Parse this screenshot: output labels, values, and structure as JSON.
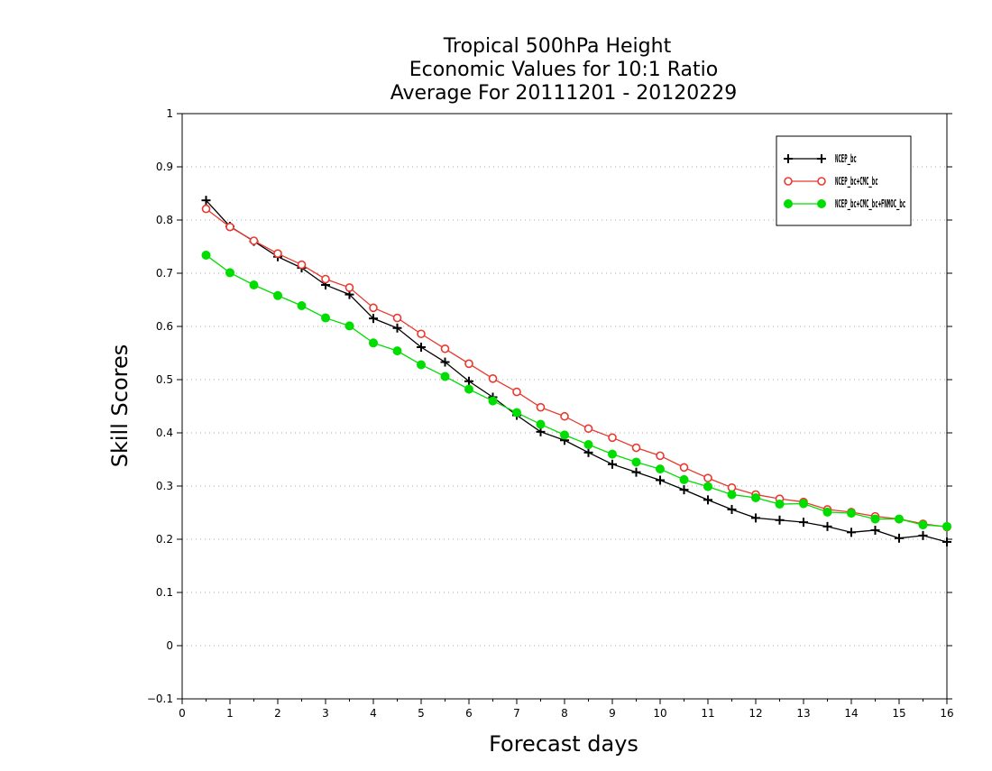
{
  "chart_data": {
    "type": "line",
    "title_lines": [
      "Tropical 500hPa Height",
      "Economic Values for 10:1 Ratio",
      "Average For 20111201 - 20120229"
    ],
    "xlabel": "Forecast days",
    "ylabel": "Skill Scores",
    "xlim": [
      0,
      16
    ],
    "ylim": [
      -0.1,
      1
    ],
    "x_ticks": [
      "0",
      "1",
      "2",
      "3",
      "4",
      "5",
      "6",
      "7",
      "8",
      "9",
      "10",
      "11",
      "12",
      "13",
      "14",
      "15",
      "16"
    ],
    "y_ticks": [
      "−0.1",
      "0",
      "0.1",
      "0.2",
      "0.3",
      "0.4",
      "0.5",
      "0.6",
      "0.7",
      "0.8",
      "0.9",
      "1"
    ],
    "y_tick_values": [
      -0.1,
      0,
      0.1,
      0.2,
      0.3,
      0.4,
      0.5,
      0.6,
      0.7,
      0.8,
      0.9,
      1.0
    ],
    "grid": "horizontal dotted",
    "legend_position": "top-right",
    "x": [
      0.5,
      1.0,
      1.5,
      2.0,
      2.5,
      3.0,
      3.5,
      4.0,
      4.5,
      5.0,
      5.5,
      6.0,
      6.5,
      7.0,
      7.5,
      8.0,
      8.5,
      9.0,
      9.5,
      10.0,
      10.5,
      11.0,
      11.5,
      12.0,
      12.5,
      13.0,
      13.5,
      14.0,
      14.5,
      15.0,
      15.5,
      16.0
    ],
    "series": [
      {
        "legend_text": "NCEP_bc",
        "color": "#000000",
        "marker": "plus",
        "values": [
          0.837,
          0.788,
          0.76,
          0.731,
          0.71,
          0.678,
          0.66,
          0.615,
          0.597,
          0.561,
          0.533,
          0.497,
          0.467,
          0.433,
          0.402,
          0.386,
          0.363,
          0.341,
          0.326,
          0.311,
          0.293,
          0.274,
          0.256,
          0.24,
          0.236,
          0.232,
          0.224,
          0.213,
          0.217,
          0.202,
          0.207,
          0.195
        ]
      },
      {
        "legend_text": "NCEP_bc+CMC_bc",
        "color": "#e8392f",
        "marker": "open-circle",
        "values": [
          0.821,
          0.787,
          0.761,
          0.737,
          0.716,
          0.689,
          0.673,
          0.635,
          0.616,
          0.586,
          0.558,
          0.53,
          0.502,
          0.477,
          0.448,
          0.431,
          0.408,
          0.391,
          0.372,
          0.357,
          0.335,
          0.315,
          0.297,
          0.284,
          0.276,
          0.27,
          0.256,
          0.251,
          0.243,
          0.238,
          0.229,
          0.223
        ]
      },
      {
        "legend_text": "NCEP_bc+CMC_bc+FNMOC_bc",
        "color": "#00dd00",
        "marker": "filled-circle",
        "values": [
          0.734,
          0.701,
          0.678,
          0.658,
          0.639,
          0.616,
          0.601,
          0.569,
          0.554,
          0.528,
          0.506,
          0.482,
          0.46,
          0.438,
          0.416,
          0.396,
          0.378,
          0.36,
          0.345,
          0.332,
          0.312,
          0.299,
          0.284,
          0.278,
          0.266,
          0.267,
          0.251,
          0.249,
          0.238,
          0.238,
          0.227,
          0.224
        ]
      }
    ]
  }
}
